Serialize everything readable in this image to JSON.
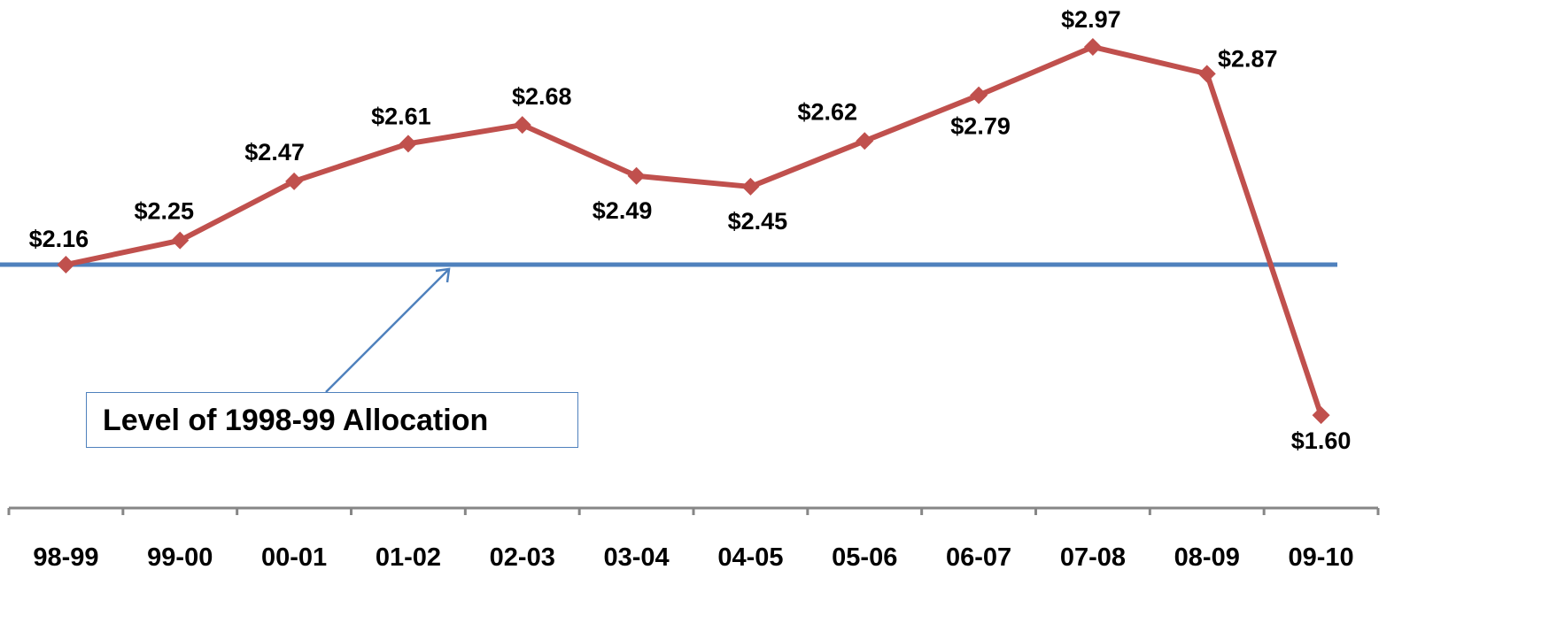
{
  "chart_data": {
    "type": "line",
    "categories": [
      "98-99",
      "99-00",
      "00-01",
      "01-02",
      "02-03",
      "03-04",
      "04-05",
      "05-06",
      "06-07",
      "07-08",
      "08-09",
      "09-10"
    ],
    "series": [
      {
        "values": [
          2.16,
          2.25,
          2.47,
          2.61,
          2.68,
          2.49,
          2.45,
          2.62,
          2.79,
          2.97,
          2.87,
          1.6
        ],
        "labels": [
          "$2.16",
          "$2.25",
          "$2.47",
          "$2.61",
          "$2.68",
          "$2.49",
          "$2.45",
          "$2.62",
          "$2.79",
          "$2.97",
          "$2.87",
          "$1.60"
        ],
        "color": "#c0504d"
      }
    ],
    "reference_line": {
      "value": 2.16,
      "color": "#4f81bd"
    },
    "annotation": "Level of 1998-99 Allocation",
    "annotation_color": "#4f81bd",
    "ylim": [
      1.45,
      3.05
    ],
    "grid": false,
    "legend": "none"
  }
}
